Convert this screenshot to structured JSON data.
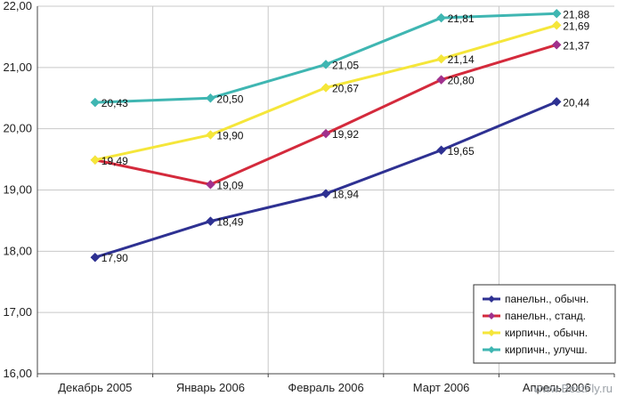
{
  "chart_data": {
    "type": "line",
    "title": "",
    "xlabel": "",
    "ylabel": "",
    "categories": [
      "Декабрь 2005",
      "Январь 2006",
      "Февраль 2006",
      "Март 2006",
      "Апрель 2006"
    ],
    "ylim": [
      16,
      22
    ],
    "yticks": [
      "16,00",
      "17,00",
      "18,00",
      "19,00",
      "20,00",
      "21,00",
      "22,00"
    ],
    "grid": true,
    "legend_position": "bottom-right",
    "series": [
      {
        "name": "панельн., обычн.",
        "color": "#2e3192",
        "marker_color": "#2e3192",
        "values": [
          17.9,
          18.49,
          18.94,
          19.65,
          20.44
        ],
        "labels": [
          "17,90",
          "18,49",
          "18,94",
          "19,65",
          "20,44"
        ]
      },
      {
        "name": "панельн., станд.",
        "color": "#d42a3c",
        "marker_color": "#a0308c",
        "values": [
          19.49,
          19.09,
          19.92,
          20.8,
          21.37
        ],
        "labels": [
          "19,49",
          "19,09",
          "19,92",
          "20,80",
          "21,37"
        ]
      },
      {
        "name": "кирпичн., обычн.",
        "color": "#f5e63a",
        "marker_color": "#f5e63a",
        "values": [
          19.49,
          19.9,
          20.67,
          21.14,
          21.69
        ],
        "labels": [
          "",
          "19,90",
          "20,67",
          "21,14",
          "21,69"
        ]
      },
      {
        "name": "кирпичн., улучш.",
        "color": "#3fb6b2",
        "marker_color": "#3fb6b2",
        "values": [
          20.43,
          20.5,
          21.05,
          21.81,
          21.88
        ],
        "labels": [
          "20,43",
          "20,50",
          "21,05",
          "21,81",
          "21,88"
        ]
      }
    ]
  },
  "watermark": "www.BestFly.ru"
}
